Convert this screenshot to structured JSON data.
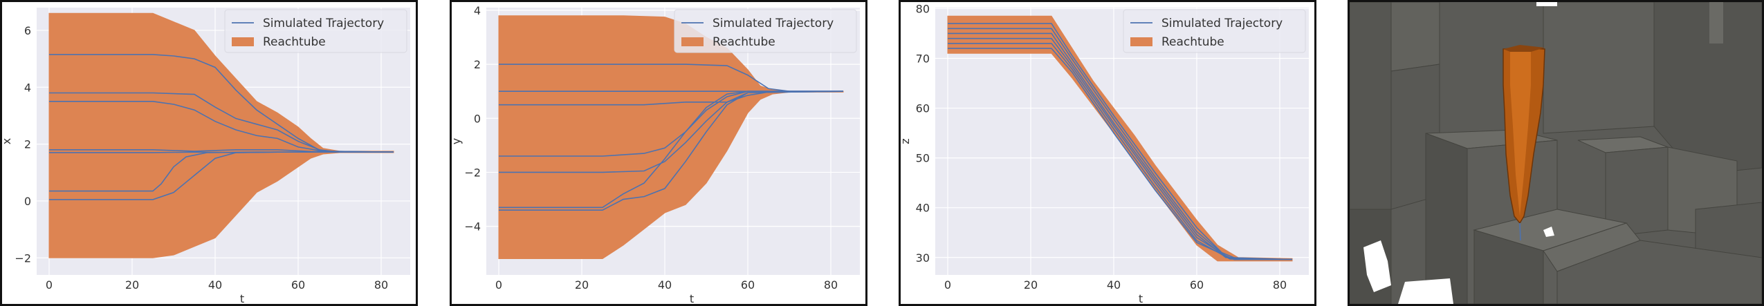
{
  "legend": {
    "trajectory_label": "Simulated Trajectory",
    "reachtube_label": "Reachtube"
  },
  "colors": {
    "trajectory": "#4c72b0",
    "reachtube": "#dd8452",
    "plot_bg": "#eaeaf2",
    "grid": "#ffffff",
    "scene_bg": "#5a5a55"
  },
  "chart_data": [
    {
      "type": "line",
      "xlabel": "t",
      "ylabel": "x",
      "xlim": [
        -3,
        87
      ],
      "ylim": [
        -2.6,
        6.8
      ],
      "xticks": [
        0,
        20,
        40,
        60,
        80
      ],
      "yticks": [
        -2,
        0,
        2,
        4,
        6
      ],
      "legend_position": "top-right",
      "grid": true,
      "tube_upper": [
        [
          0,
          6.6
        ],
        [
          20,
          6.6
        ],
        [
          25,
          6.6
        ],
        [
          30,
          6.3
        ],
        [
          35,
          6.0
        ],
        [
          40,
          5.1
        ],
        [
          45,
          4.3
        ],
        [
          50,
          3.5
        ],
        [
          55,
          3.1
        ],
        [
          60,
          2.6
        ],
        [
          63,
          2.2
        ],
        [
          66,
          1.85
        ],
        [
          70,
          1.75
        ],
        [
          83,
          1.75
        ]
      ],
      "tube_lower": [
        [
          0,
          -2.0
        ],
        [
          20,
          -2.0
        ],
        [
          25,
          -2.0
        ],
        [
          30,
          -1.9
        ],
        [
          35,
          -1.6
        ],
        [
          40,
          -1.3
        ],
        [
          45,
          -0.5
        ],
        [
          50,
          0.3
        ],
        [
          55,
          0.7
        ],
        [
          60,
          1.2
        ],
        [
          63,
          1.5
        ],
        [
          66,
          1.65
        ],
        [
          70,
          1.7
        ],
        [
          83,
          1.7
        ]
      ],
      "series": [
        {
          "values": [
            [
              0,
              5.15
            ],
            [
              25,
              5.15
            ],
            [
              30,
              5.1
            ],
            [
              35,
              5.0
            ],
            [
              40,
              4.7
            ],
            [
              45,
              3.9
            ],
            [
              50,
              3.2
            ],
            [
              55,
              2.7
            ],
            [
              60,
              2.2
            ],
            [
              65,
              1.8
            ],
            [
              70,
              1.72
            ],
            [
              83,
              1.72
            ]
          ]
        },
        {
          "values": [
            [
              0,
              3.8
            ],
            [
              25,
              3.8
            ],
            [
              35,
              3.75
            ],
            [
              40,
              3.3
            ],
            [
              45,
              2.9
            ],
            [
              50,
              2.7
            ],
            [
              55,
              2.5
            ],
            [
              60,
              2.1
            ],
            [
              66,
              1.75
            ],
            [
              83,
              1.72
            ]
          ]
        },
        {
          "values": [
            [
              0,
              3.5
            ],
            [
              25,
              3.5
            ],
            [
              30,
              3.4
            ],
            [
              35,
              3.2
            ],
            [
              40,
              2.8
            ],
            [
              45,
              2.5
            ],
            [
              50,
              2.3
            ],
            [
              55,
              2.2
            ],
            [
              60,
              1.9
            ],
            [
              66,
              1.75
            ],
            [
              83,
              1.72
            ]
          ]
        },
        {
          "values": [
            [
              0,
              1.8
            ],
            [
              25,
              1.8
            ],
            [
              35,
              1.75
            ],
            [
              45,
              1.8
            ],
            [
              55,
              1.8
            ],
            [
              63,
              1.74
            ],
            [
              83,
              1.72
            ]
          ]
        },
        {
          "values": [
            [
              0,
              1.7
            ],
            [
              25,
              1.7
            ],
            [
              35,
              1.72
            ],
            [
              45,
              1.7
            ],
            [
              55,
              1.72
            ],
            [
              63,
              1.72
            ],
            [
              83,
              1.72
            ]
          ]
        },
        {
          "values": [
            [
              0,
              0.35
            ],
            [
              25,
              0.35
            ],
            [
              27,
              0.6
            ],
            [
              30,
              1.2
            ],
            [
              33,
              1.55
            ],
            [
              38,
              1.7
            ],
            [
              50,
              1.72
            ],
            [
              83,
              1.72
            ]
          ]
        },
        {
          "values": [
            [
              0,
              0.05
            ],
            [
              25,
              0.05
            ],
            [
              30,
              0.3
            ],
            [
              35,
              0.9
            ],
            [
              40,
              1.5
            ],
            [
              45,
              1.7
            ],
            [
              55,
              1.72
            ],
            [
              83,
              1.72
            ]
          ]
        }
      ]
    },
    {
      "type": "line",
      "xlabel": "t",
      "ylabel": "y",
      "xlim": [
        -3,
        87
      ],
      "ylim": [
        -5.8,
        4.1
      ],
      "xticks": [
        0,
        20,
        40,
        60,
        80
      ],
      "yticks": [
        -4,
        -2,
        0,
        2,
        4
      ],
      "legend_position": "top-right",
      "grid": true,
      "tube_upper": [
        [
          0,
          3.8
        ],
        [
          20,
          3.8
        ],
        [
          25,
          3.8
        ],
        [
          30,
          3.8
        ],
        [
          40,
          3.75
        ],
        [
          45,
          3.5
        ],
        [
          50,
          3.0
        ],
        [
          55,
          2.6
        ],
        [
          60,
          1.8
        ],
        [
          63,
          1.2
        ],
        [
          66,
          1.05
        ],
        [
          70,
          1.0
        ],
        [
          83,
          1.0
        ]
      ],
      "tube_lower": [
        [
          0,
          -5.2
        ],
        [
          25,
          -5.2
        ],
        [
          30,
          -4.7
        ],
        [
          35,
          -4.1
        ],
        [
          40,
          -3.5
        ],
        [
          45,
          -3.2
        ],
        [
          50,
          -2.4
        ],
        [
          55,
          -1.2
        ],
        [
          60,
          0.2
        ],
        [
          63,
          0.7
        ],
        [
          66,
          0.9
        ],
        [
          70,
          0.97
        ],
        [
          83,
          0.97
        ]
      ],
      "series": [
        {
          "values": [
            [
              0,
              2.0
            ],
            [
              25,
              2.0
            ],
            [
              45,
              2.0
            ],
            [
              55,
              1.95
            ],
            [
              60,
              1.6
            ],
            [
              65,
              1.1
            ],
            [
              70,
              1.0
            ],
            [
              83,
              1.0
            ]
          ]
        },
        {
          "values": [
            [
              0,
              1.0
            ],
            [
              60,
              1.0
            ],
            [
              83,
              1.0
            ]
          ]
        },
        {
          "values": [
            [
              0,
              0.5
            ],
            [
              35,
              0.5
            ],
            [
              45,
              0.6
            ],
            [
              55,
              0.6
            ],
            [
              60,
              0.85
            ],
            [
              66,
              1.0
            ],
            [
              83,
              1.0
            ]
          ]
        },
        {
          "values": [
            [
              0,
              -1.4
            ],
            [
              25,
              -1.4
            ],
            [
              35,
              -1.3
            ],
            [
              40,
              -1.1
            ],
            [
              45,
              -0.5
            ],
            [
              50,
              0.3
            ],
            [
              55,
              0.8
            ],
            [
              60,
              1.0
            ],
            [
              83,
              1.0
            ]
          ]
        },
        {
          "values": [
            [
              0,
              -2.0
            ],
            [
              25,
              -2.0
            ],
            [
              35,
              -1.95
            ],
            [
              40,
              -1.6
            ],
            [
              45,
              -0.9
            ],
            [
              50,
              -0.1
            ],
            [
              55,
              0.6
            ],
            [
              60,
              0.95
            ],
            [
              83,
              1.0
            ]
          ]
        },
        {
          "values": [
            [
              0,
              -3.3
            ],
            [
              25,
              -3.3
            ],
            [
              30,
              -2.8
            ],
            [
              35,
              -2.4
            ],
            [
              40,
              -1.5
            ],
            [
              45,
              -0.5
            ],
            [
              50,
              0.4
            ],
            [
              55,
              0.9
            ],
            [
              60,
              1.0
            ],
            [
              83,
              1.0
            ]
          ]
        },
        {
          "values": [
            [
              0,
              -3.4
            ],
            [
              25,
              -3.4
            ],
            [
              30,
              -3.0
            ],
            [
              35,
              -2.9
            ],
            [
              40,
              -2.6
            ],
            [
              45,
              -1.6
            ],
            [
              50,
              -0.5
            ],
            [
              55,
              0.5
            ],
            [
              60,
              0.95
            ],
            [
              83,
              1.0
            ]
          ]
        }
      ]
    },
    {
      "type": "line",
      "xlabel": "t",
      "ylabel": "z",
      "xlim": [
        -3,
        87
      ],
      "ylim": [
        26.5,
        80.2
      ],
      "xticks": [
        0,
        20,
        40,
        60,
        80
      ],
      "yticks": [
        30,
        40,
        50,
        60,
        70,
        80
      ],
      "legend_position": "top-right",
      "grid": true,
      "tube_upper": [
        [
          0,
          78.5
        ],
        [
          25,
          78.5
        ],
        [
          30,
          72.0
        ],
        [
          35,
          65.5
        ],
        [
          40,
          60.0
        ],
        [
          45,
          54.5
        ],
        [
          50,
          48.5
        ],
        [
          55,
          43.0
        ],
        [
          60,
          37.5
        ],
        [
          65,
          32.5
        ],
        [
          70,
          30.0
        ],
        [
          83,
          29.8
        ]
      ],
      "tube_lower": [
        [
          0,
          71.0
        ],
        [
          25,
          71.0
        ],
        [
          30,
          66.0
        ],
        [
          35,
          60.5
        ],
        [
          40,
          55.0
        ],
        [
          45,
          49.5
        ],
        [
          50,
          43.5
        ],
        [
          55,
          38.0
        ],
        [
          60,
          32.5
        ],
        [
          65,
          29.3
        ],
        [
          70,
          29.3
        ],
        [
          83,
          29.3
        ]
      ],
      "series": [
        {
          "values": [
            [
              0,
              77.0
            ],
            [
              25,
              77.0
            ],
            [
              30,
              70.5
            ],
            [
              40,
              58.5
            ],
            [
              50,
              47.0
            ],
            [
              60,
              36.0
            ],
            [
              66,
              31.0
            ],
            [
              70,
              29.6
            ],
            [
              83,
              29.6
            ]
          ]
        },
        {
          "values": [
            [
              0,
              76.0
            ],
            [
              25,
              76.0
            ],
            [
              30,
              69.8
            ],
            [
              40,
              57.8
            ],
            [
              50,
              46.2
            ],
            [
              60,
              35.2
            ],
            [
              67,
              30.2
            ],
            [
              70,
              29.6
            ],
            [
              83,
              29.6
            ]
          ]
        },
        {
          "values": [
            [
              0,
              75.0
            ],
            [
              25,
              75.0
            ],
            [
              30,
              69.0
            ],
            [
              40,
              57.0
            ],
            [
              50,
              45.6
            ],
            [
              60,
              34.6
            ],
            [
              67,
              30.0
            ],
            [
              83,
              29.6
            ]
          ]
        },
        {
          "values": [
            [
              0,
              74.0
            ],
            [
              25,
              74.0
            ],
            [
              30,
              68.4
            ],
            [
              40,
              56.5
            ],
            [
              50,
              45.0
            ],
            [
              60,
              34.0
            ],
            [
              68,
              29.8
            ],
            [
              83,
              29.6
            ]
          ]
        },
        {
          "values": [
            [
              0,
              73.0
            ],
            [
              25,
              73.0
            ],
            [
              30,
              67.8
            ],
            [
              40,
              55.8
            ],
            [
              50,
              44.2
            ],
            [
              60,
              33.4
            ],
            [
              68,
              29.7
            ],
            [
              83,
              29.6
            ]
          ]
        },
        {
          "values": [
            [
              0,
              72.0
            ],
            [
              25,
              72.0
            ],
            [
              30,
              67.2
            ],
            [
              40,
              55.0
            ],
            [
              50,
              43.5
            ],
            [
              60,
              33.0
            ],
            [
              69,
              29.6
            ],
            [
              83,
              29.6
            ]
          ]
        }
      ]
    }
  ]
}
